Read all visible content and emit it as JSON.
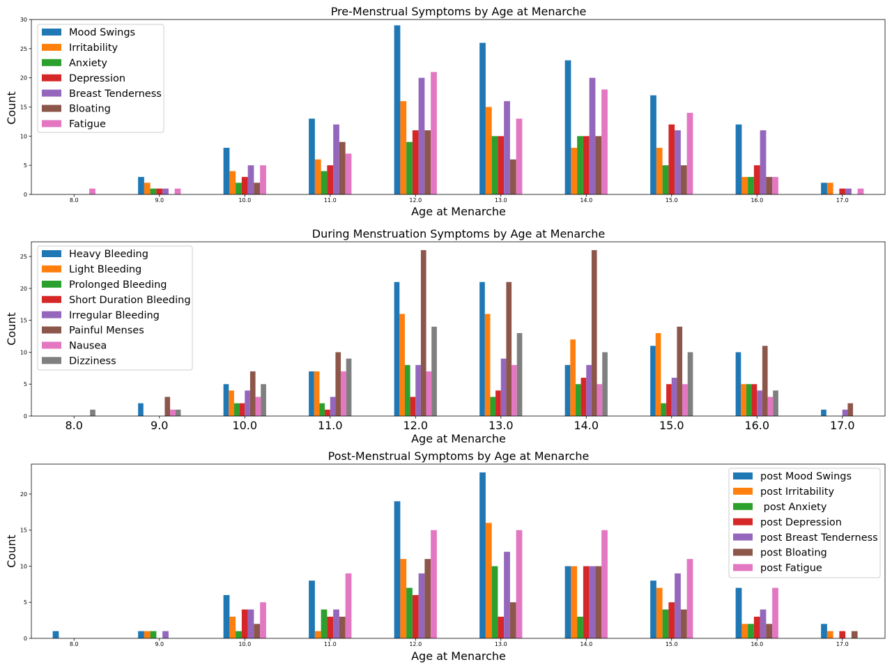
{
  "chart_data": [
    {
      "type": "bar",
      "title": "Pre-Menstrual Symptoms by Age at Menarche",
      "xlabel": "Age at Menarche",
      "ylabel": "Count",
      "categories": [
        "8.0",
        "9.0",
        "10.0",
        "11.0",
        "12.0",
        "13.0",
        "14.0",
        "15.0",
        "16.0",
        "17.0"
      ],
      "ylim": [
        0,
        30
      ],
      "yticks": [
        0,
        5,
        10,
        15,
        20,
        25,
        30
      ],
      "legend_position": "upper-left",
      "series": [
        {
          "name": "Mood Swings",
          "color": "#1f77b4",
          "values": [
            0,
            3,
            8,
            13,
            29,
            26,
            23,
            17,
            12,
            2
          ]
        },
        {
          "name": "Irritability",
          "color": "#ff7f0e",
          "values": [
            0,
            2,
            4,
            6,
            16,
            15,
            8,
            8,
            3,
            2
          ]
        },
        {
          "name": "Anxiety",
          "color": "#2ca02c",
          "values": [
            0,
            1,
            2,
            4,
            9,
            10,
            10,
            5,
            3,
            0
          ]
        },
        {
          "name": "Depression",
          "color": "#d62728",
          "values": [
            0,
            1,
            3,
            5,
            11,
            10,
            10,
            12,
            5,
            1
          ]
        },
        {
          "name": "Breast Tenderness",
          "color": "#9467bd",
          "values": [
            0,
            1,
            5,
            12,
            20,
            16,
            20,
            11,
            11,
            1
          ]
        },
        {
          "name": "Bloating",
          "color": "#8c564b",
          "values": [
            0,
            0,
            2,
            9,
            11,
            6,
            10,
            5,
            3,
            0
          ]
        },
        {
          "name": "Fatigue",
          "color": "#e377c2",
          "values": [
            1,
            1,
            5,
            7,
            21,
            13,
            18,
            14,
            3,
            1
          ]
        }
      ]
    },
    {
      "type": "bar",
      "title": "During Menstruation Symptoms by Age at Menarche",
      "xlabel": "Age at Menarche",
      "ylabel": "Count",
      "categories": [
        "8.0",
        "9.0",
        "10.0",
        "11.0",
        "12.0",
        "13.0",
        "14.0",
        "15.0",
        "16.0",
        "17.0"
      ],
      "ylim": [
        0,
        27.3
      ],
      "yticks": [
        0,
        5,
        10,
        15,
        20,
        25
      ],
      "legend_position": "upper-left",
      "series": [
        {
          "name": "Heavy Bleeding",
          "color": "#1f77b4",
          "values": [
            0,
            2,
            5,
            7,
            21,
            21,
            8,
            11,
            10,
            1
          ]
        },
        {
          "name": "Light Bleeding",
          "color": "#ff7f0e",
          "values": [
            0,
            0,
            4,
            7,
            16,
            16,
            12,
            13,
            5,
            0
          ]
        },
        {
          "name": "Prolonged Bleeding",
          "color": "#2ca02c",
          "values": [
            0,
            0,
            2,
            2,
            8,
            3,
            5,
            2,
            5,
            0
          ]
        },
        {
          "name": "Short Duration Bleeding",
          "color": "#d62728",
          "values": [
            0,
            0,
            2,
            1,
            3,
            4,
            6,
            5,
            5,
            0
          ]
        },
        {
          "name": "Irregular Bleeding",
          "color": "#9467bd",
          "values": [
            0,
            0,
            4,
            3,
            8,
            9,
            8,
            6,
            4,
            1
          ]
        },
        {
          "name": "Painful Menses",
          "color": "#8c564b",
          "values": [
            0,
            3,
            7,
            10,
            26,
            21,
            26,
            14,
            11,
            2
          ]
        },
        {
          "name": "Nausea",
          "color": "#e377c2",
          "values": [
            0,
            1,
            3,
            7,
            7,
            8,
            5,
            5,
            3,
            0
          ]
        },
        {
          "name": "Dizziness",
          "color": "#7f7f7f",
          "values": [
            1,
            1,
            5,
            9,
            14,
            13,
            10,
            10,
            4,
            0
          ]
        }
      ]
    },
    {
      "type": "bar",
      "title": "Post-Menstrual Symptoms by Age at Menarche",
      "xlabel": "Age at Menarche",
      "ylabel": "Count",
      "categories": [
        "8.0",
        "9.0",
        "10.0",
        "11.0",
        "12.0",
        "13.0",
        "14.0",
        "15.0",
        "16.0",
        "17.0"
      ],
      "ylim": [
        0,
        24.15
      ],
      "yticks": [
        0,
        5,
        10,
        15,
        20
      ],
      "legend_position": "upper-right",
      "series": [
        {
          "name": "post Mood Swings",
          "color": "#1f77b4",
          "values": [
            1,
            1,
            6,
            8,
            19,
            23,
            10,
            8,
            7,
            2
          ]
        },
        {
          "name": "post Irritability",
          "color": "#ff7f0e",
          "values": [
            0,
            1,
            3,
            1,
            11,
            16,
            10,
            7,
            2,
            1
          ]
        },
        {
          "name": " post Anxiety",
          "color": "#2ca02c",
          "values": [
            0,
            1,
            1,
            4,
            7,
            10,
            3,
            4,
            2,
            0
          ]
        },
        {
          "name": "post Depression",
          "color": "#d62728",
          "values": [
            0,
            0,
            4,
            3,
            6,
            3,
            10,
            5,
            3,
            1
          ]
        },
        {
          "name": "post Breast Tenderness",
          "color": "#9467bd",
          "values": [
            0,
            1,
            4,
            4,
            9,
            12,
            10,
            9,
            4,
            0
          ]
        },
        {
          "name": "post Bloating",
          "color": "#8c564b",
          "values": [
            0,
            0,
            2,
            3,
            11,
            5,
            10,
            4,
            2,
            1
          ]
        },
        {
          "name": "post Fatigue",
          "color": "#e377c2",
          "values": [
            0,
            0,
            5,
            9,
            15,
            15,
            15,
            11,
            7,
            0
          ]
        }
      ]
    }
  ]
}
